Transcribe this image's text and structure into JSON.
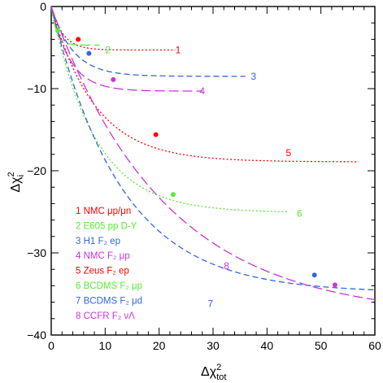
{
  "chart_data": {
    "type": "line",
    "xlabel": "Δχ²_tot",
    "ylabel": "Δχ²_i",
    "xlim": [
      0,
      60
    ],
    "ylim": [
      -40,
      0
    ],
    "x_ticks": [
      "0",
      "10",
      "20",
      "30",
      "40",
      "50",
      "60"
    ],
    "y_ticks": [
      "0",
      "−10",
      "−20",
      "−30",
      "−40"
    ],
    "grid": false,
    "legend_placement": "lower-left",
    "series": [
      {
        "id": "1",
        "name": "NMC  μp/μn",
        "color": "#ff0000",
        "dash": "dotted",
        "x_end": 23,
        "k": 2.2,
        "y_at_end": -5.3,
        "marker": [
          5,
          -4
        ]
      },
      {
        "id": "2",
        "name": "E605 pp D-Y",
        "color": "#55ee33",
        "dash": "long-dash",
        "x_end": 9,
        "k": 1.0,
        "y_at_end": -4.7,
        "marker": [
          1.2,
          -2.9
        ]
      },
      {
        "id": "3",
        "name": "H1 F₂ ep",
        "color": "#3366dd",
        "dash": "dashed",
        "x_end": 36,
        "k": 4.0,
        "y_at_end": -8.5,
        "marker": [
          7,
          -5.7
        ]
      },
      {
        "id": "4",
        "name": "NMC F₂ μp",
        "color": "#cc33dd",
        "dash": "long-dash",
        "x_end": 28,
        "k": 3.5,
        "y_at_end": -10.3,
        "marker": [
          11.5,
          -8.9
        ]
      },
      {
        "id": "5",
        "name": "Zeus F₂ ep",
        "color": "#ff0000",
        "dash": "dotted",
        "x_end": 57,
        "k": 8.0,
        "y_at_end": -18.9,
        "marker": [
          19.4,
          -15.6
        ]
      },
      {
        "id": "6",
        "name": "BCDMS  F₂ μp",
        "color": "#55ee33",
        "dash": "dotted",
        "x_end": 44,
        "k": 8.0,
        "y_at_end": -25,
        "marker": [
          22.6,
          -22.9
        ]
      },
      {
        "id": "7",
        "name": "BCDMS  F₂ μd",
        "color": "#3366dd",
        "dash": "dashed",
        "x_end": 60,
        "k": 13.0,
        "y_at_end": -34.5,
        "marker": [
          48.8,
          -32.7
        ]
      },
      {
        "id": "8",
        "name": "CCFR F₂ νΛ",
        "color": "#cc33dd",
        "dash": "long-dash",
        "x_end": 60,
        "k": 21.0,
        "y_at_end": -35.7,
        "marker": [
          52.6,
          -33.9
        ]
      }
    ],
    "curve_labels": [
      {
        "text": "1",
        "color": "#ff0000",
        "x": 23,
        "y": -5.3
      },
      {
        "text": "2",
        "color": "#55ee33",
        "x": 10,
        "y": -5.3
      },
      {
        "text": "3",
        "color": "#3366dd",
        "x": 37,
        "y": -8.5
      },
      {
        "text": "4",
        "color": "#cc33dd",
        "x": 27.5,
        "y": -10.3
      },
      {
        "text": "5",
        "color": "#ff0000",
        "x": 43.5,
        "y": -17.8
      },
      {
        "text": "6",
        "color": "#55ee33",
        "x": 45.5,
        "y": -25.2
      },
      {
        "text": "7",
        "color": "#3366dd",
        "x": 29,
        "y": -36.2
      },
      {
        "text": "8",
        "color": "#cc33dd",
        "x": 32,
        "y": -31.6
      }
    ]
  }
}
